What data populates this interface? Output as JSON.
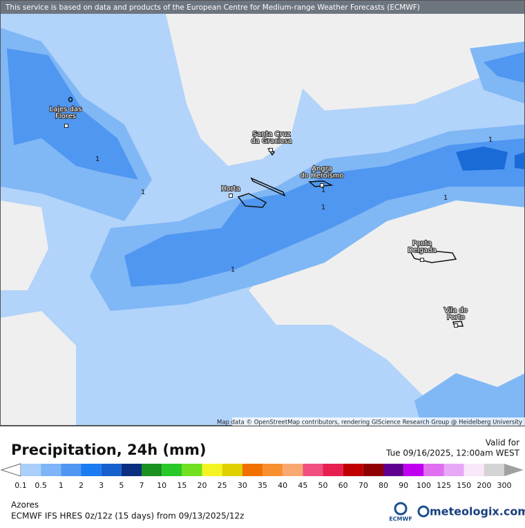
{
  "header": {
    "notice": "This service is based on data and products of the European Centre for Medium-range Weather Forecasts (ECMWF)"
  },
  "map": {
    "attribution": "Map data © OpenStreetMap contributors, rendering GIScience Research Group @ Heidelberg University",
    "places": [
      {
        "lines": [
          "Lajes das",
          "Flores"
        ]
      },
      {
        "lines": [
          "Santa Cruz",
          "da Graciosa"
        ]
      },
      {
        "lines": [
          "Horta"
        ]
      },
      {
        "lines": [
          "Angra",
          "do Heroísmo"
        ]
      },
      {
        "lines": [
          "Ponta",
          "Delgada"
        ]
      },
      {
        "lines": [
          "Vila do",
          "Porto"
        ]
      }
    ],
    "contour_labels": [
      1,
      1,
      1,
      1,
      1,
      1,
      1
    ]
  },
  "legend": {
    "title": "Precipitation, 24h (mm)",
    "valid_label": "Valid for",
    "valid_time": "Tue 09/16/2025, 12:00am WEST",
    "ticks": [
      0.1,
      0.5,
      1,
      2,
      3,
      5,
      7,
      10,
      15,
      20,
      25,
      30,
      35,
      40,
      45,
      50,
      60,
      70,
      80,
      90,
      100,
      125,
      150,
      200,
      300
    ],
    "colors": [
      "#a9cffa",
      "#7db5f6",
      "#4f97f0",
      "#1a7cf0",
      "#1560cc",
      "#0a2f80",
      "#1a9020",
      "#28c828",
      "#70e020",
      "#f4f424",
      "#e0d000",
      "#f07000",
      "#f89030",
      "#f8a870",
      "#f05080",
      "#e82050",
      "#c00000",
      "#900000",
      "#600090",
      "#c000f0",
      "#e070f0",
      "#e8a8f8",
      "#f8e8f8",
      "#d4d4d4"
    ]
  },
  "footer": {
    "region": "Azores",
    "model": "ECMWF IFS HRES 0z/12z (15 days) from  09/13/2025/12z",
    "logo_ecmwf": "ECMWF",
    "logo_meteologix": "meteologix.com"
  }
}
